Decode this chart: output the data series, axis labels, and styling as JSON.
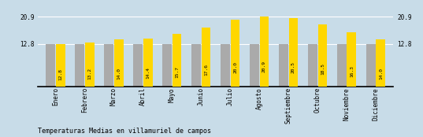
{
  "categories": [
    "Enero",
    "Febrero",
    "Marzo",
    "Abril",
    "Mayo",
    "Junio",
    "Julio",
    "Agosto",
    "Septiembre",
    "Octubre",
    "Noviembre",
    "Diciembre"
  ],
  "values": [
    12.8,
    13.2,
    14.0,
    14.4,
    15.7,
    17.6,
    20.0,
    20.9,
    20.5,
    18.5,
    16.3,
    14.0
  ],
  "gray_values": [
    12.8,
    12.8,
    12.8,
    12.8,
    12.8,
    12.8,
    12.8,
    12.8,
    12.8,
    12.8,
    12.8,
    12.8
  ],
  "bar_color_gold": "#FFD700",
  "bar_color_gray": "#AAAAAA",
  "background_color": "#C8DCE8",
  "title": "Temperaturas Medias en villamuriel de campos",
  "ylim_max": 24.7,
  "yticks": [
    12.8,
    20.9
  ],
  "grid_color": "#FFFFFF",
  "title_fontsize": 6.0,
  "bar_label_fontsize": 4.5,
  "tick_label_fontsize": 5.5,
  "bar_width": 0.32,
  "gray_bar_width": 0.32
}
